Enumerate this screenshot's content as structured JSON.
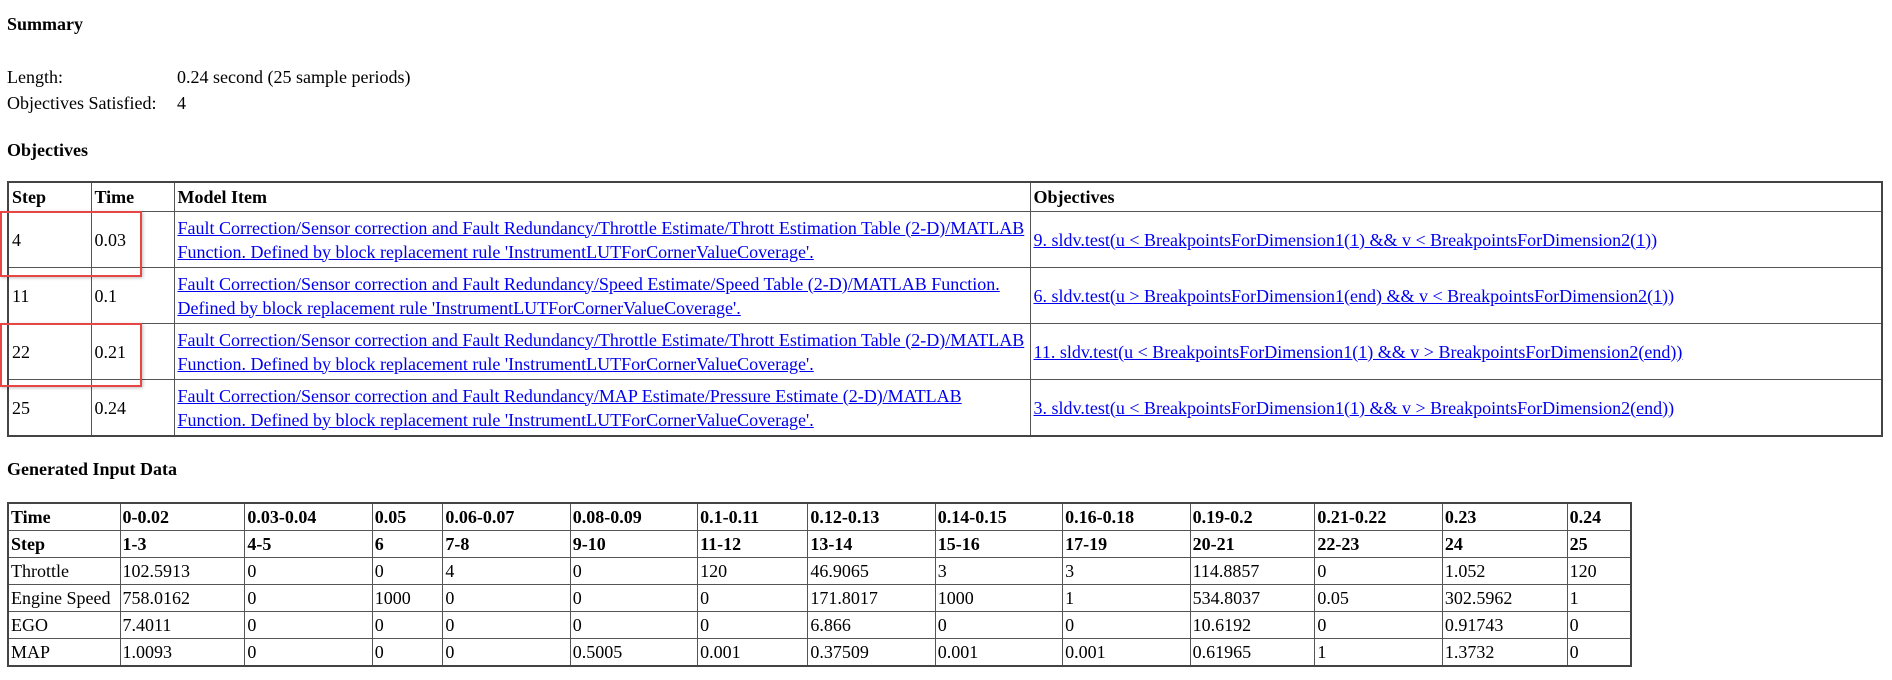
{
  "summary": {
    "heading": "Summary",
    "length_label": "Length:",
    "length_value": "0.24 second (25 sample periods)",
    "objectives_label": "Objectives Satisfied:",
    "objectives_value": "4"
  },
  "objectives": {
    "heading": "Objectives",
    "headers": [
      "Step",
      "Time",
      "Model Item",
      "Objectives"
    ],
    "rows": [
      {
        "step": "4",
        "time": "0.03",
        "model_item": "Fault Correction/Sensor correction and Fault Redundancy/Throttle Estimate/Thrott Estimation Table (2-D)/MATLAB Function. Defined by block replacement rule 'InstrumentLUTForCornerValueCoverage'.",
        "objective": "9. sldv.test(u < BreakpointsForDimension1(1) && v < BreakpointsForDimension2(1))",
        "highlighted": true
      },
      {
        "step": "11",
        "time": "0.1",
        "model_item": "Fault Correction/Sensor correction and Fault Redundancy/Speed Estimate/Speed Table (2-D)/MATLAB Function. Defined by block replacement rule 'InstrumentLUTForCornerValueCoverage'.",
        "objective": "6. sldv.test(u > BreakpointsForDimension1(end) && v < BreakpointsForDimension2(1))",
        "highlighted": false
      },
      {
        "step": "22",
        "time": "0.21",
        "model_item": "Fault Correction/Sensor correction and Fault Redundancy/Throttle Estimate/Thrott Estimation Table (2-D)/MATLAB Function. Defined by block replacement rule 'InstrumentLUTForCornerValueCoverage'.",
        "objective": "11. sldv.test(u < BreakpointsForDimension1(1) && v > BreakpointsForDimension2(end))",
        "highlighted": true
      },
      {
        "step": "25",
        "time": "0.24",
        "model_item": "Fault Correction/Sensor correction and Fault Redundancy/MAP Estimate/Pressure Estimate (2-D)/MATLAB Function. Defined by block replacement rule 'InstrumentLUTForCornerValueCoverage'.",
        "objective": "3. sldv.test(u < BreakpointsForDimension1(1) && v > BreakpointsForDimension2(end))",
        "highlighted": false
      }
    ]
  },
  "generated": {
    "heading": "Generated Input Data",
    "time_label": "Time",
    "times": [
      "0-0.02",
      "0.03-0.04",
      "0.05",
      "0.06-0.07",
      "0.08-0.09",
      "0.1-0.11",
      "0.12-0.13",
      "0.14-0.15",
      "0.16-0.18",
      "0.19-0.2",
      "0.21-0.22",
      "0.23",
      "0.24"
    ],
    "step_label": "Step",
    "steps": [
      "1-3",
      "4-5",
      "6",
      "7-8",
      "9-10",
      "11-12",
      "13-14",
      "15-16",
      "17-19",
      "20-21",
      "22-23",
      "24",
      "25"
    ],
    "signals": [
      {
        "name": "Throttle",
        "values": [
          "102.5913",
          "0",
          "0",
          "4",
          "0",
          "120",
          "46.9065",
          "3",
          "3",
          "114.8857",
          "0",
          "1.052",
          "120"
        ]
      },
      {
        "name": "Engine Speed",
        "values": [
          "758.0162",
          "0",
          "1000",
          "0",
          "0",
          "0",
          "171.8017",
          "1000",
          "1",
          "534.8037",
          "0.05",
          "302.5962",
          "1"
        ]
      },
      {
        "name": "EGO",
        "values": [
          "7.4011",
          "0",
          "0",
          "0",
          "0",
          "0",
          "6.866",
          "0",
          "0",
          "10.6192",
          "0",
          "0.91743",
          "0"
        ]
      },
      {
        "name": "MAP",
        "values": [
          "1.0093",
          "0",
          "0",
          "0",
          "0.5005",
          "0.001",
          "0.37509",
          "0.001",
          "0.001",
          "0.61965",
          "1",
          "1.3732",
          "0"
        ]
      }
    ]
  },
  "colors": {
    "link": "#0000ee",
    "highlight_box": "#e84545"
  }
}
